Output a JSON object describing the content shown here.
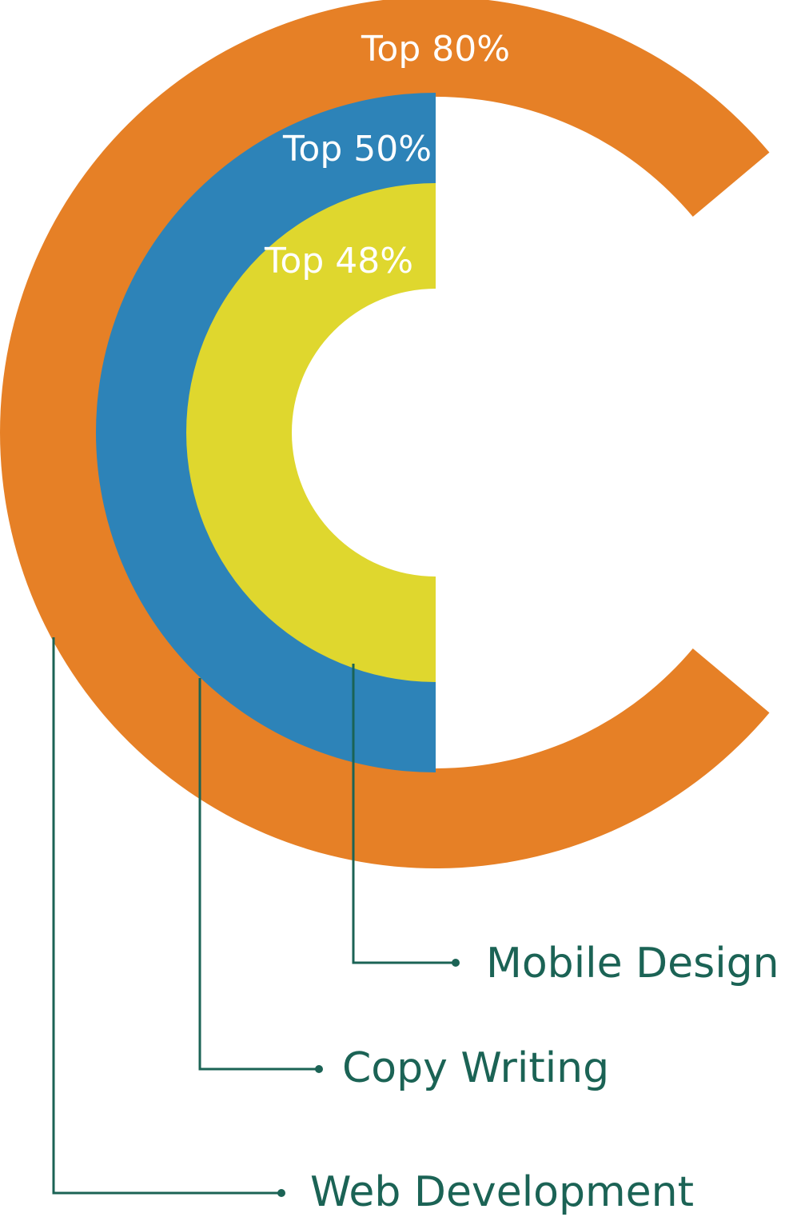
{
  "chart_data": {
    "type": "radial-bar",
    "title": "",
    "series": [
      {
        "category": "Web Development",
        "value_label": "Top 80%",
        "arc_start_deg": 40,
        "arc_end_deg": 320,
        "color": "#E68026"
      },
      {
        "category": "Copy Writing",
        "value_label": "Top 50%",
        "arc_start_deg": 90,
        "arc_end_deg": 270,
        "color": "#2D83B8"
      },
      {
        "category": "Mobile Design",
        "value_label": "Top 48%",
        "arc_start_deg": 90,
        "arc_end_deg": 270,
        "color": "#DFD72E"
      }
    ],
    "leader_color": "#1B6355"
  }
}
